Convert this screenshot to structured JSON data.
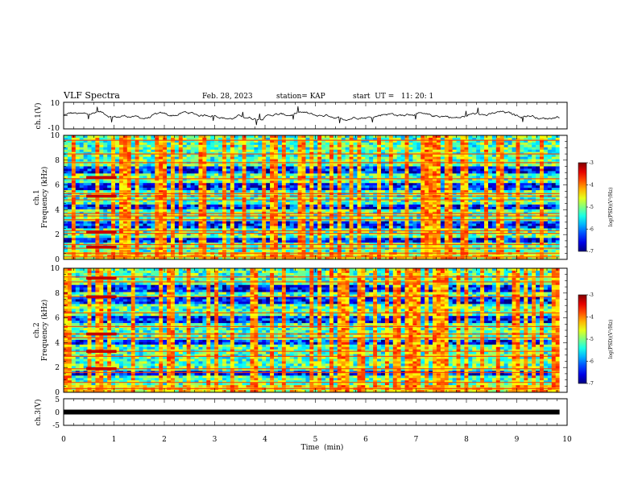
{
  "header": {
    "title": "VLF Spectra",
    "date": "Feb. 28, 2023",
    "station": "station= KAP",
    "start": "start  UT =   11: 20: 1"
  },
  "chart_data": {
    "type": "heatmap",
    "x": {
      "label": "Time  (min)",
      "lim": [
        0,
        10
      ],
      "ticks": [
        "0",
        "1",
        "2",
        "3",
        "4",
        "5",
        "6",
        "7",
        "8",
        "9",
        "10"
      ],
      "data_end": 9.85
    },
    "panels": [
      {
        "id": "ch1-waveform",
        "type": "line",
        "ylabel": "ch.1(V)",
        "ylim": [
          -10,
          10
        ],
        "yticks": [
          "10",
          "-10"
        ],
        "baseline": 0,
        "amplitude": 4
      },
      {
        "id": "ch1-spectrogram",
        "type": "heatmap",
        "ylabel_top": "ch.1",
        "ylabel": "Frequency  (kHz)",
        "ylim": [
          0,
          10
        ],
        "yticks": [
          "0",
          "2",
          "4",
          "6",
          "8",
          "10"
        ],
        "colorbar": {
          "label": "log(PSD)(V²/Hz)",
          "range": [
            -7,
            -3
          ],
          "ticks": [
            "-3",
            "-4",
            "-5",
            "-6",
            "-7"
          ]
        },
        "quiet_bands_khz": [
          [
            5.5,
            6.2
          ],
          [
            7.0,
            7.5
          ],
          [
            4.0,
            4.5
          ],
          [
            1.4,
            1.8
          ],
          [
            2.5,
            3.0
          ]
        ],
        "lines_khz": [
          0.2,
          0.5,
          0.9,
          1.2,
          2.1,
          2.3,
          3.2,
          3.5,
          3.7,
          4.8,
          5.1,
          5.3,
          6.5,
          7.8,
          8.5,
          9.6
        ],
        "burst": {
          "t_start_min": 0.45,
          "t_end_min": 1.05,
          "lines_khz": [
            1.0,
            2.2,
            5.1,
            6.6
          ]
        }
      },
      {
        "id": "ch2-spectrogram",
        "type": "heatmap",
        "ylabel_top": "ch.2",
        "ylabel": "Frequency  (kHz)",
        "ylim": [
          0,
          10
        ],
        "yticks": [
          "0",
          "2",
          "4",
          "6",
          "8",
          "10"
        ],
        "colorbar": {
          "label": "log(PSD)(V²/Hz)",
          "range": [
            -7,
            -3
          ],
          "ticks": [
            "-3",
            "-4",
            "-5",
            "-6",
            "-7"
          ]
        },
        "quiet_bands_khz": [
          [
            5.6,
            6.2
          ],
          [
            7.1,
            7.6
          ],
          [
            3.8,
            4.2
          ],
          [
            1.3,
            1.7
          ],
          [
            8.0,
            8.6
          ]
        ],
        "lines_khz": [
          0.3,
          0.8,
          1.6,
          1.9,
          2.9,
          3.3,
          4.4,
          4.7,
          5.3,
          6.4,
          7.7,
          8.9,
          9.3
        ],
        "burst": {
          "t_start_min": 0.45,
          "t_end_min": 1.05,
          "lines_khz": [
            1.9,
            3.3,
            4.7,
            7.7,
            9.2
          ]
        }
      },
      {
        "id": "ch3-waveform",
        "type": "line",
        "ylabel": "ch.3(V)",
        "ylim": [
          -5,
          5
        ],
        "yticks": [
          "5",
          "0",
          "-5"
        ],
        "level": 0
      }
    ]
  }
}
